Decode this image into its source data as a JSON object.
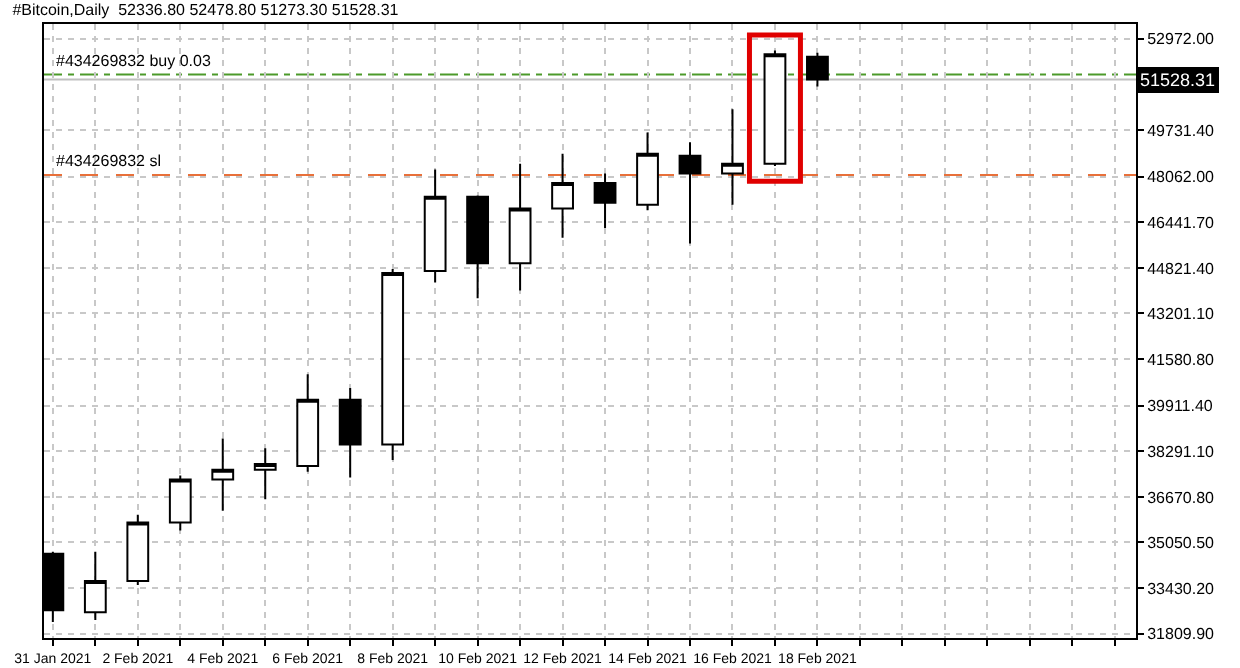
{
  "chart_data": {
    "type": "candlestick",
    "title": "#Bitcoin,Daily  52336.80 52478.80 51273.30 51528.31",
    "x": [
      "2021-01-31",
      "2021-02-01",
      "2021-02-02",
      "2021-02-03",
      "2021-02-04",
      "2021-02-05",
      "2021-02-06",
      "2021-02-07",
      "2021-02-08",
      "2021-02-09",
      "2021-02-10",
      "2021-02-11",
      "2021-02-12",
      "2021-02-13",
      "2021-02-14",
      "2021-02-15",
      "2021-02-16",
      "2021-02-17",
      "2021-02-18"
    ],
    "ohlc": [
      [
        34650,
        34720,
        32220,
        32640
      ],
      [
        32570,
        34720,
        32290,
        33680
      ],
      [
        33680,
        36040,
        33540,
        35760
      ],
      [
        35760,
        37430,
        35480,
        37290
      ],
      [
        37290,
        38750,
        36180,
        37640
      ],
      [
        37640,
        38400,
        36590,
        37840
      ],
      [
        37770,
        41040,
        37570,
        40130
      ],
      [
        40130,
        40550,
        37360,
        38540
      ],
      [
        38540,
        44780,
        37980,
        44640
      ],
      [
        44710,
        48320,
        44300,
        47350
      ],
      [
        47350,
        47400,
        43740,
        44990
      ],
      [
        44990,
        48530,
        44020,
        46930
      ],
      [
        46930,
        48880,
        45890,
        47840
      ],
      [
        47840,
        48180,
        46240,
        47140
      ],
      [
        47070,
        49640,
        46870,
        48880
      ],
      [
        48810,
        49290,
        45690,
        48180
      ],
      [
        48180,
        50470,
        47070,
        48530
      ],
      [
        48530,
        52560,
        48450,
        52420
      ],
      [
        52336.8,
        52478.8,
        51273.3,
        51528.31
      ]
    ],
    "xlim": [
      "2021-01-30T19:00",
      "2021-02-25T12:00"
    ],
    "xticks": [
      {
        "value": "2021-01-31",
        "label": "31 Jan 2021"
      },
      {
        "value": "2021-02-01",
        "label": null
      },
      {
        "value": "2021-02-02",
        "label": "2 Feb 2021"
      },
      {
        "value": "2021-02-03",
        "label": null
      },
      {
        "value": "2021-02-04",
        "label": "4 Feb 2021"
      },
      {
        "value": "2021-02-05",
        "label": null
      },
      {
        "value": "2021-02-06",
        "label": "6 Feb 2021"
      },
      {
        "value": "2021-02-07",
        "label": null
      },
      {
        "value": "2021-02-08",
        "label": "8 Feb 2021"
      },
      {
        "value": "2021-02-09",
        "label": null
      },
      {
        "value": "2021-02-10",
        "label": "10 Feb 2021"
      },
      {
        "value": "2021-02-11",
        "label": null
      },
      {
        "value": "2021-02-12",
        "label": "12 Feb 2021"
      },
      {
        "value": "2021-02-13",
        "label": null
      },
      {
        "value": "2021-02-14",
        "label": "14 Feb 2021"
      },
      {
        "value": "2021-02-15",
        "label": null
      },
      {
        "value": "2021-02-16",
        "label": "16 Feb 2021"
      },
      {
        "value": "2021-02-17",
        "label": null
      },
      {
        "value": "2021-02-18",
        "label": "18 Feb 2021"
      },
      {
        "value": "2021-02-19",
        "label": null
      },
      {
        "value": "2021-02-20",
        "label": null
      },
      {
        "value": "2021-02-21",
        "label": null
      },
      {
        "value": "2021-02-22",
        "label": null
      },
      {
        "value": "2021-02-23",
        "label": null
      },
      {
        "value": "2021-02-24",
        "label": null
      },
      {
        "value": "2021-02-25",
        "label": null
      }
    ],
    "ylim": [
      31650,
      53500
    ],
    "yticks": [
      {
        "value": 31809.9,
        "label": "31809.90"
      },
      {
        "value": 33430.2,
        "label": "33430.20"
      },
      {
        "value": 35050.5,
        "label": "35050.50"
      },
      {
        "value": 36670.8,
        "label": "36670.80"
      },
      {
        "value": 38291.1,
        "label": "38291.10"
      },
      {
        "value": 39911.4,
        "label": "39911.40"
      },
      {
        "value": 41580.8,
        "label": "41580.80"
      },
      {
        "value": 43201.1,
        "label": "43201.10"
      },
      {
        "value": 44821.4,
        "label": "44821.40"
      },
      {
        "value": 46441.7,
        "label": "46441.70"
      },
      {
        "value": 48062,
        "label": "48062.00"
      },
      {
        "value": 49731.4,
        "label": "49731.40"
      },
      {
        "value": 52972,
        "label": "52972.00"
      }
    ],
    "grid": true,
    "ref_lines": [
      {
        "axis": "y",
        "value": 51700,
        "label": "#434269832 buy 0.03",
        "color": "#4c9a2a",
        "line_style": "dashdot"
      },
      {
        "axis": "y",
        "value": 48130,
        "label": "#434269832 sl",
        "color": "#e8703a",
        "line_style": "dashed"
      },
      {
        "axis": "y",
        "value": 51528.31,
        "label": "51528.31",
        "color": "#c0c0c0",
        "line_style": "solid"
      }
    ]
  }
}
